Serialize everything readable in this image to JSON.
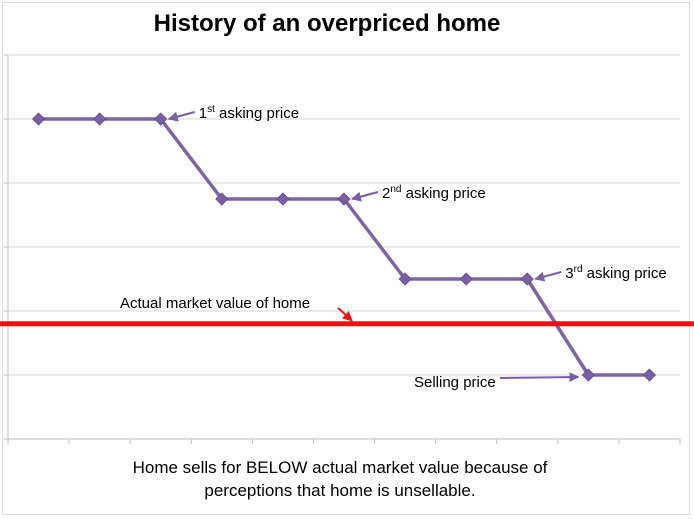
{
  "chart_data": {
    "type": "line",
    "title": "History of an overpriced home",
    "xlabel": "",
    "ylabel": "",
    "ylim": [
      0,
      6
    ],
    "grid": true,
    "legend": "none",
    "series": [
      {
        "values": [
          5,
          5,
          5,
          3.75,
          3.75,
          3.75,
          2.5,
          2.5,
          2.5,
          1,
          1
        ]
      }
    ],
    "x": [
      1,
      2,
      3,
      4,
      5,
      6,
      7,
      8,
      9,
      10,
      11
    ],
    "reference_line": {
      "value": 1.8,
      "label": "Actual market value of home"
    },
    "annotations": [
      {
        "base": "1",
        "sup": "st",
        "rest": " asking price",
        "point_index": 2
      },
      {
        "base": "2",
        "sup": "nd",
        "rest": " asking price",
        "point_index": 5
      },
      {
        "base": "3",
        "sup": "rd",
        "rest": "  asking price",
        "point_index": 8
      },
      {
        "base": "Selling price",
        "sup": "",
        "rest": "",
        "point_index": 9
      }
    ],
    "caption_line1": "Home sells for BELOW actual market value because of",
    "caption_line2": "perceptions that home is unsellable.",
    "colors": {
      "series": "#8064a2",
      "marker": "#7b5ea7",
      "reference": "#ee1111",
      "grid": "#d9d9d9",
      "arrow": "#7b5ea7"
    }
  }
}
